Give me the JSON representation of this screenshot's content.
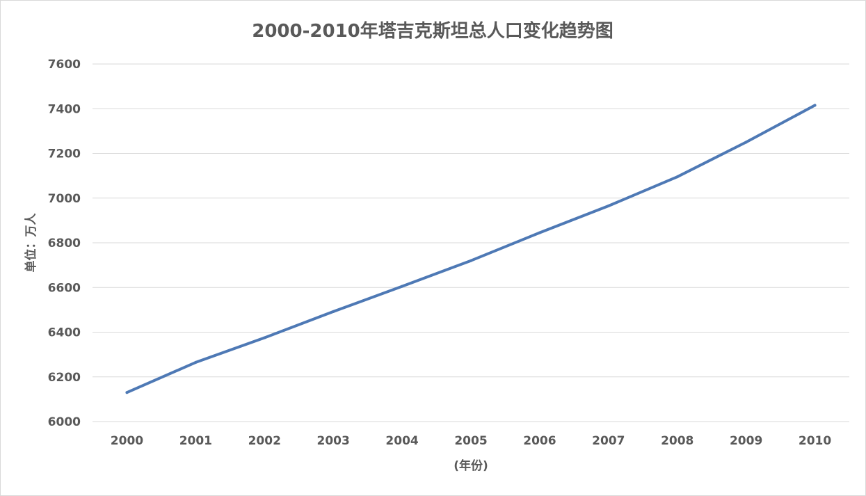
{
  "chart_data": {
    "type": "line",
    "title": "2000-2010年塔吉克斯坦总人口变化趋势图",
    "xlabel": "(年份)",
    "ylabel": "单位：万人",
    "categories": [
      "2000",
      "2001",
      "2002",
      "2003",
      "2004",
      "2005",
      "2006",
      "2007",
      "2008",
      "2009",
      "2010"
    ],
    "series": [
      {
        "values": [
          6130,
          6265,
          6375,
          6492,
          6605,
          6720,
          6845,
          6965,
          7095,
          7250,
          7415
        ]
      }
    ],
    "ylim": [
      6000,
      7600
    ],
    "yticks": [
      6000,
      6200,
      6400,
      6600,
      6800,
      7000,
      7200,
      7400,
      7600
    ],
    "grid": true,
    "legend": "none",
    "line_color": "#4e79b5"
  }
}
